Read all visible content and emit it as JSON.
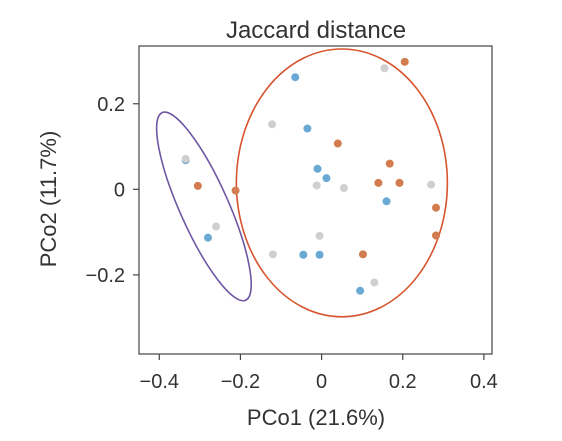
{
  "chart_data": {
    "type": "scatter",
    "title": "Jaccard distance",
    "xlabel": "PCo1 (21.6%)",
    "ylabel": "PCo2 (11.7%)",
    "xlim": [
      -0.45,
      0.42
    ],
    "ylim": [
      -0.385,
      0.335
    ],
    "x_ticks": [
      -0.4,
      -0.2,
      0,
      0.2,
      0.4
    ],
    "x_tick_labels": [
      "−0.4",
      "−0.2",
      "0",
      "0.2",
      "0.4"
    ],
    "y_ticks": [
      0.2,
      0,
      -0.2
    ],
    "y_tick_labels": [
      "0.2",
      "0",
      "−0.2"
    ],
    "grid": false,
    "legend": "none",
    "colors": {
      "blue": "#6aa9d4",
      "orange": "#d37c4f",
      "gray": "#cfcfcf",
      "purple_ellipse": "#6e57a3",
      "orange_ellipse": "#d6552f",
      "frame": "#444444"
    },
    "series": [
      {
        "color_key": "blue",
        "points": [
          [
            -0.065,
            0.262
          ],
          [
            -0.035,
            0.142
          ],
          [
            -0.01,
            0.048
          ],
          [
            0.012,
            0.026
          ],
          [
            -0.335,
            0.068
          ],
          [
            -0.28,
            -0.113
          ],
          [
            -0.045,
            -0.153
          ],
          [
            -0.005,
            -0.153
          ],
          [
            0.16,
            -0.028
          ],
          [
            0.095,
            -0.237
          ]
        ]
      },
      {
        "color_key": "orange",
        "points": [
          [
            0.205,
            0.298
          ],
          [
            0.04,
            0.107
          ],
          [
            0.168,
            0.06
          ],
          [
            0.14,
            0.015
          ],
          [
            0.192,
            0.015
          ],
          [
            0.282,
            -0.043
          ],
          [
            0.282,
            -0.108
          ],
          [
            0.102,
            -0.152
          ],
          [
            -0.305,
            0.008
          ],
          [
            -0.212,
            -0.003
          ]
        ]
      },
      {
        "color_key": "gray",
        "points": [
          [
            0.155,
            0.283
          ],
          [
            -0.122,
            0.152
          ],
          [
            -0.012,
            0.009
          ],
          [
            0.055,
            0.003
          ],
          [
            0.27,
            0.011
          ],
          [
            -0.335,
            0.071
          ],
          [
            -0.26,
            -0.087
          ],
          [
            -0.005,
            -0.109
          ],
          [
            -0.12,
            -0.152
          ],
          [
            0.13,
            -0.218
          ]
        ]
      }
    ],
    "ellipses": [
      {
        "color_key": "purple_ellipse",
        "cx": -0.29,
        "cy": -0.04,
        "rx": 0.06,
        "ry": 0.24,
        "rotation_deg": -24
      },
      {
        "color_key": "orange_ellipse",
        "cx": 0.05,
        "cy": 0.015,
        "rx": 0.26,
        "ry": 0.313,
        "rotation_deg": 0
      }
    ]
  }
}
